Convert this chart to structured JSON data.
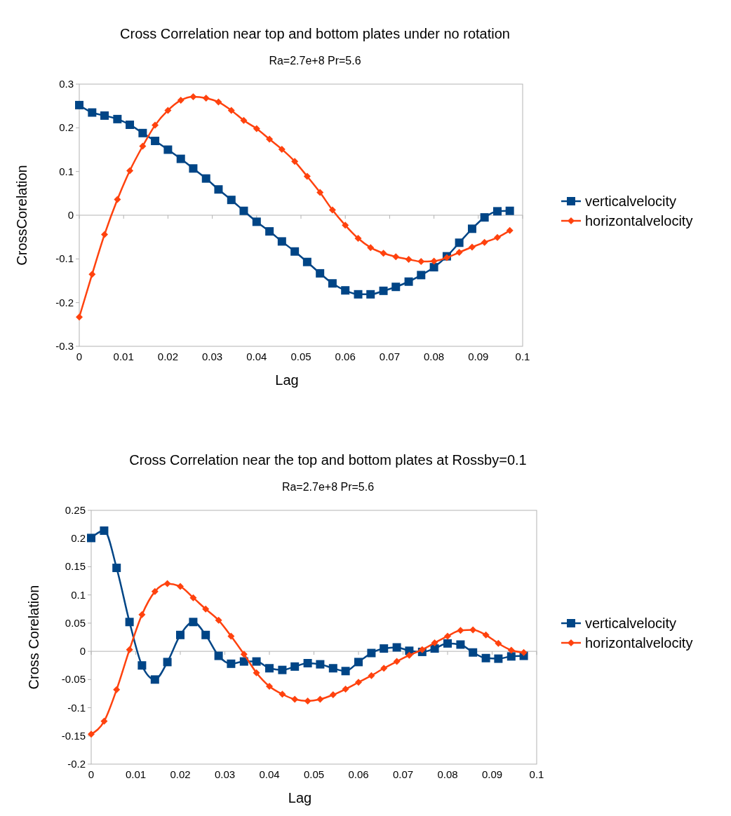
{
  "chart_data": [
    {
      "type": "line",
      "title": "Cross Correlation near top and bottom plates under no rotation",
      "subtitle": "Ra=2.7e+8 Pr=5.6",
      "xlabel": "Lag",
      "ylabel": "CrossCorelation",
      "x": [
        0,
        0.0029,
        0.0057,
        0.0086,
        0.0114,
        0.0143,
        0.0171,
        0.02,
        0.0229,
        0.0257,
        0.0286,
        0.0314,
        0.0343,
        0.0371,
        0.04,
        0.0429,
        0.0457,
        0.0486,
        0.0514,
        0.0543,
        0.0571,
        0.06,
        0.0629,
        0.0657,
        0.0686,
        0.0714,
        0.0743,
        0.0771,
        0.08,
        0.0829,
        0.0857,
        0.0886,
        0.0914,
        0.0943,
        0.0971
      ],
      "series": [
        {
          "name": "verticalvelocity",
          "color": "#004586",
          "marker": "square",
          "values": [
            0.252,
            0.235,
            0.228,
            0.22,
            0.207,
            0.188,
            0.17,
            0.15,
            0.129,
            0.107,
            0.084,
            0.059,
            0.035,
            0.01,
            -0.015,
            -0.037,
            -0.06,
            -0.083,
            -0.107,
            -0.133,
            -0.156,
            -0.172,
            -0.181,
            -0.181,
            -0.173,
            -0.164,
            -0.152,
            -0.137,
            -0.119,
            -0.094,
            -0.063,
            -0.031,
            -0.005,
            0.009,
            0.01
          ]
        },
        {
          "name": "horizontalvelocity",
          "color": "#ff420e",
          "marker": "diamond",
          "values": [
            -0.233,
            -0.135,
            -0.044,
            0.036,
            0.102,
            0.158,
            0.206,
            0.24,
            0.263,
            0.271,
            0.268,
            0.259,
            0.24,
            0.217,
            0.198,
            0.174,
            0.151,
            0.123,
            0.089,
            0.052,
            0.012,
            -0.023,
            -0.053,
            -0.074,
            -0.087,
            -0.095,
            -0.101,
            -0.106,
            -0.105,
            -0.097,
            -0.085,
            -0.073,
            -0.062,
            -0.051,
            -0.035
          ]
        }
      ],
      "xlim": [
        0,
        0.1
      ],
      "xticks": [
        0,
        0.01,
        0.02,
        0.03,
        0.04,
        0.05,
        0.06,
        0.07,
        0.08,
        0.09,
        0.1
      ],
      "ylim": [
        -0.3,
        0.3
      ],
      "yticks": [
        -0.3,
        -0.2,
        -0.1,
        0,
        0.1,
        0.2,
        0.3
      ],
      "legend": "right"
    },
    {
      "type": "line",
      "title": "Cross Correlation near the top and bottom plates at Rossby=0.1",
      "subtitle": "Ra=2.7e+8 Pr=5.6",
      "xlabel": "Lag",
      "ylabel": "Cross Corelation",
      "x": [
        0,
        0.0029,
        0.0057,
        0.0086,
        0.0114,
        0.0143,
        0.0171,
        0.02,
        0.0229,
        0.0257,
        0.0286,
        0.0314,
        0.0343,
        0.0371,
        0.04,
        0.0429,
        0.0457,
        0.0486,
        0.0514,
        0.0543,
        0.0571,
        0.06,
        0.0629,
        0.0657,
        0.0686,
        0.0714,
        0.0743,
        0.0771,
        0.08,
        0.0829,
        0.0857,
        0.0886,
        0.0914,
        0.0943,
        0.0971
      ],
      "series": [
        {
          "name": "verticalvelocity",
          "color": "#004586",
          "marker": "square",
          "values": [
            0.201,
            0.214,
            0.148,
            0.052,
            -0.025,
            -0.05,
            -0.019,
            0.029,
            0.052,
            0.029,
            -0.008,
            -0.022,
            -0.018,
            -0.018,
            -0.03,
            -0.033,
            -0.027,
            -0.021,
            -0.023,
            -0.03,
            -0.035,
            -0.019,
            -0.003,
            0.005,
            0.007,
            0.001,
            -0.001,
            0.005,
            0.014,
            0.012,
            -0.002,
            -0.012,
            -0.013,
            -0.009,
            -0.008
          ]
        },
        {
          "name": "horizontalvelocity",
          "color": "#ff420e",
          "marker": "diamond",
          "values": [
            -0.147,
            -0.124,
            -0.068,
            0.003,
            0.065,
            0.106,
            0.12,
            0.115,
            0.095,
            0.075,
            0.055,
            0.027,
            -0.005,
            -0.038,
            -0.062,
            -0.076,
            -0.085,
            -0.088,
            -0.085,
            -0.077,
            -0.067,
            -0.055,
            -0.043,
            -0.03,
            -0.018,
            -0.007,
            0.003,
            0.015,
            0.027,
            0.037,
            0.038,
            0.029,
            0.014,
            0.002,
            -0.002
          ]
        }
      ],
      "xlim": [
        0,
        0.1
      ],
      "xticks": [
        0,
        0.01,
        0.02,
        0.03,
        0.04,
        0.05,
        0.06,
        0.07,
        0.08,
        0.09,
        0.1
      ],
      "ylim": [
        -0.2,
        0.25
      ],
      "yticks": [
        -0.2,
        -0.15,
        -0.1,
        -0.05,
        0,
        0.05,
        0.1,
        0.15,
        0.2,
        0.25
      ],
      "legend": "right"
    }
  ]
}
